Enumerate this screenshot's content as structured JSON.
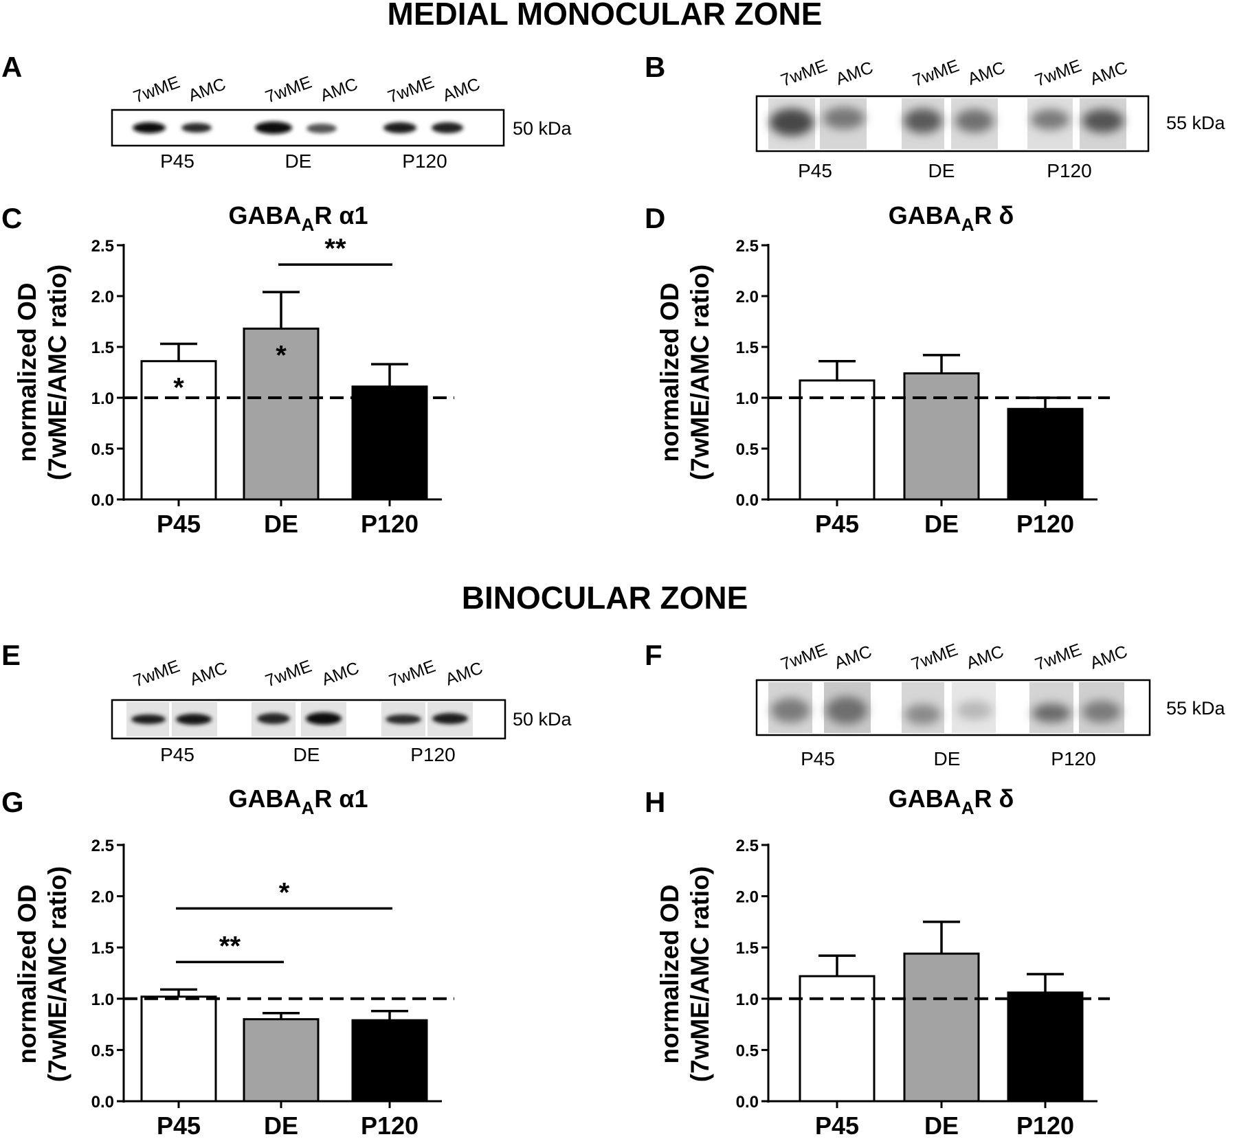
{
  "section_titles": [
    "MEDIAL MONOCULAR ZONE",
    "BINOCULAR ZONE"
  ],
  "panels": {
    "A": {
      "label": "A",
      "lanes": [
        "7wME",
        "AMC",
        "7wME",
        "AMC",
        "7wME",
        "AMC"
      ],
      "groups": [
        "P45",
        "DE",
        "P120"
      ],
      "kda": "50 kDa"
    },
    "B": {
      "label": "B",
      "lanes": [
        "7wME",
        "AMC",
        "7wME",
        "AMC",
        "7wME",
        "AMC"
      ],
      "groups": [
        "P45",
        "DE",
        "P120"
      ],
      "kda": "55 kDa"
    },
    "E": {
      "label": "E",
      "lanes": [
        "7wME",
        "AMC",
        "7wME",
        "AMC",
        "7wME",
        "AMC"
      ],
      "groups": [
        "P45",
        "DE",
        "P120"
      ],
      "kda": "50 kDa"
    },
    "F": {
      "label": "F",
      "lanes": [
        "7wME",
        "AMC",
        "7wME",
        "AMC",
        "7wME",
        "AMC"
      ],
      "groups": [
        "P45",
        "DE",
        "P120"
      ],
      "kda": "55 kDa"
    },
    "C": {
      "label": "C"
    },
    "D": {
      "label": "D"
    },
    "G": {
      "label": "G"
    },
    "H": {
      "label": "H"
    }
  },
  "colors": {
    "P45": "#ffffff",
    "DE": "#a3a3a3",
    "P120": "#000000"
  },
  "chart_data": [
    {
      "panel": "C",
      "type": "bar",
      "title": {
        "main": "GABA",
        "sub": "A",
        "rest": "R α1"
      },
      "ylabel": [
        "normalized OD",
        "(7wME/AMC ratio)"
      ],
      "categories": [
        "P45",
        "DE",
        "P120"
      ],
      "values": [
        1.36,
        1.68,
        1.11
      ],
      "errors": [
        0.17,
        0.36,
        0.22
      ],
      "ylim": [
        0,
        2.5
      ],
      "yticks": [
        "0.0",
        "0.5",
        "1.0",
        "1.5",
        "2.0",
        "2.5"
      ],
      "reference_line": 1.0,
      "bar_stars": [
        "*",
        "*",
        ""
      ],
      "comparisons": [
        {
          "from": 1,
          "to": 2,
          "label": "**"
        }
      ]
    },
    {
      "panel": "D",
      "type": "bar",
      "title": {
        "main": "GABA",
        "sub": "A",
        "rest": "R δ"
      },
      "ylabel": [
        "normalized OD",
        "(7wME/AMC ratio)"
      ],
      "categories": [
        "P45",
        "DE",
        "P120"
      ],
      "values": [
        1.17,
        1.24,
        0.89
      ],
      "errors": [
        0.19,
        0.18,
        0.11
      ],
      "ylim": [
        0,
        2.5
      ],
      "yticks": [
        "0.0",
        "0.5",
        "1.0",
        "1.5",
        "2.0",
        "2.5"
      ],
      "reference_line": 1.0,
      "bar_stars": [
        "",
        "",
        ""
      ],
      "comparisons": []
    },
    {
      "panel": "G",
      "type": "bar",
      "title": {
        "main": "GABA",
        "sub": "A",
        "rest": "R α1"
      },
      "ylabel": [
        "normalized OD",
        "(7wME/AMC ratio)"
      ],
      "categories": [
        "P45",
        "DE",
        "P120"
      ],
      "values": [
        1.02,
        0.8,
        0.79
      ],
      "errors": [
        0.07,
        0.06,
        0.09
      ],
      "ylim": [
        0,
        2.5
      ],
      "yticks": [
        "0.0",
        "0.5",
        "1.0",
        "1.5",
        "2.0",
        "2.5"
      ],
      "reference_line": 1.0,
      "bar_stars": [
        "",
        "",
        ""
      ],
      "comparisons": [
        {
          "from": 0,
          "to": 2,
          "label": "*"
        },
        {
          "from": 0,
          "to": 1,
          "label": "**"
        }
      ]
    },
    {
      "panel": "H",
      "type": "bar",
      "title": {
        "main": "GABA",
        "sub": "A",
        "rest": "R δ"
      },
      "ylabel": [
        "normalized OD",
        "(7wME/AMC ratio)"
      ],
      "categories": [
        "P45",
        "DE",
        "P120"
      ],
      "values": [
        1.22,
        1.44,
        1.06
      ],
      "errors": [
        0.2,
        0.31,
        0.18
      ],
      "ylim": [
        0,
        2.5
      ],
      "yticks": [
        "0.0",
        "0.5",
        "1.0",
        "1.5",
        "2.0",
        "2.5"
      ],
      "reference_line": 1.0,
      "bar_stars": [
        "",
        "",
        ""
      ],
      "comparisons": []
    }
  ]
}
